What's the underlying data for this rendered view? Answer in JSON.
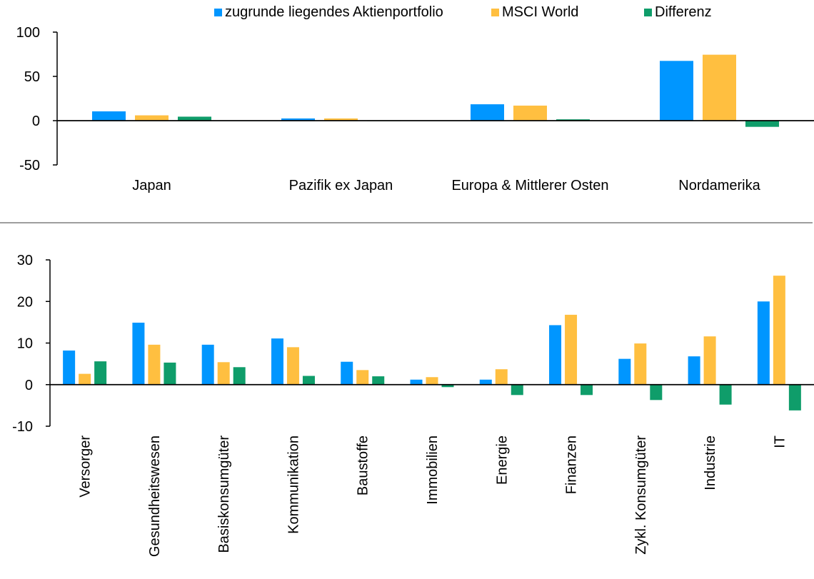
{
  "legend": [
    {
      "name": "zugrunde liegendes Aktienportfolio",
      "color": "#0096FF"
    },
    {
      "name": "MSCI World",
      "color": "#FFBF40"
    },
    {
      "name": "Differenz",
      "color": "#0F9D6A"
    }
  ],
  "chart_data": [
    {
      "type": "bar",
      "categories": [
        "Japan",
        "Pazifik ex Japan",
        "Europa & Mittlerer Osten",
        "Nordamerika"
      ],
      "series": [
        {
          "name": "zugrunde liegendes Aktienportfolio",
          "values": [
            10.5,
            2.5,
            18.5,
            67.5
          ]
        },
        {
          "name": "MSCI World",
          "values": [
            6,
            2.5,
            17,
            74.5
          ]
        },
        {
          "name": "Differenz",
          "values": [
            4.5,
            0,
            1.5,
            -7
          ]
        }
      ],
      "ylim": [
        -50,
        100
      ],
      "yticks": [
        "-50",
        "0",
        "50",
        "100"
      ],
      "legend_position": "top"
    },
    {
      "type": "bar",
      "categories": [
        "Versorger",
        "Gesundheitswesen",
        "Basiskonsumgüter",
        "Kommunikation",
        "Baustoffe",
        "Immobilien",
        "Energie",
        "Finanzen",
        "Zykl. Konsumgüter",
        "Industrie",
        "IT"
      ],
      "series": [
        {
          "name": "zugrunde liegendes Aktienportfolio",
          "values": [
            8.2,
            14.9,
            9.6,
            11.1,
            5.5,
            1.2,
            1.2,
            14.3,
            6.2,
            6.8,
            20.0
          ]
        },
        {
          "name": "MSCI World",
          "values": [
            2.6,
            9.6,
            5.4,
            9.0,
            3.5,
            1.8,
            3.7,
            16.8,
            9.9,
            11.6,
            26.2
          ]
        },
        {
          "name": "Differenz",
          "values": [
            5.6,
            5.3,
            4.2,
            2.1,
            2.0,
            -0.6,
            -2.5,
            -2.5,
            -3.7,
            -4.8,
            -6.2
          ]
        }
      ],
      "ylim": [
        -10,
        30
      ],
      "yticks": [
        "-10",
        "0",
        "10",
        "20",
        "30"
      ]
    }
  ]
}
